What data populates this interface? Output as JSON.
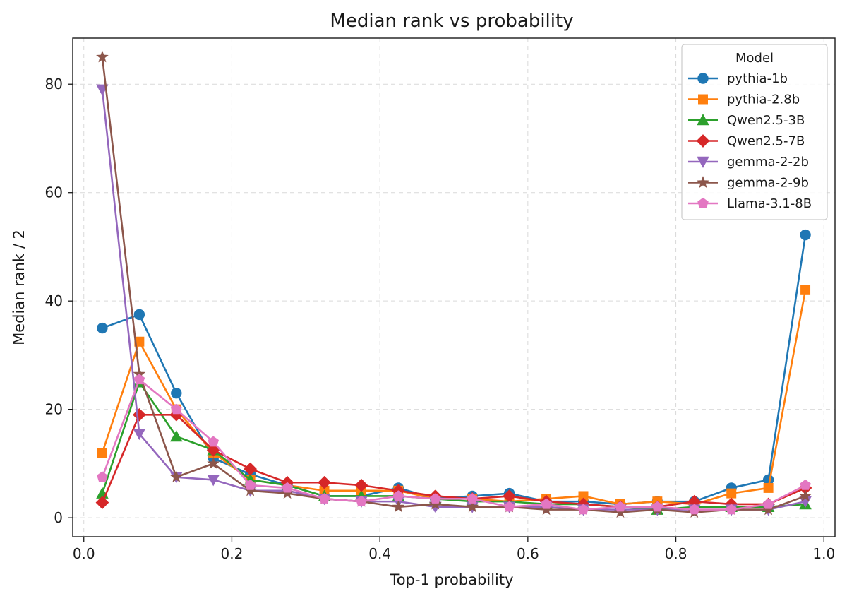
{
  "chart_data": {
    "type": "line",
    "title": "Median rank vs probability",
    "xlabel": "Top-1 probability",
    "ylabel": "Median rank / 2",
    "xlim": [
      -0.015,
      1.015
    ],
    "ylim": [
      -3.5,
      88.5
    ],
    "xticks": [
      0.0,
      0.2,
      0.4,
      0.6,
      0.8,
      1.0
    ],
    "xtick_labels": [
      "0.0",
      "0.2",
      "0.4",
      "0.6",
      "0.8",
      "1.0"
    ],
    "yticks": [
      0,
      20,
      40,
      60,
      80
    ],
    "ytick_labels": [
      "0",
      "20",
      "40",
      "60",
      "80"
    ],
    "grid": true,
    "legend": {
      "title": "Model",
      "placement": "top-right"
    },
    "x": [
      0.025,
      0.075,
      0.125,
      0.175,
      0.225,
      0.275,
      0.325,
      0.375,
      0.425,
      0.475,
      0.525,
      0.575,
      0.625,
      0.675,
      0.725,
      0.775,
      0.825,
      0.875,
      0.925,
      0.975
    ],
    "series": [
      {
        "name": "pythia-1b",
        "color": "#1f77b4",
        "marker": "circle",
        "values": [
          35,
          37.5,
          23,
          11,
          8,
          6,
          4,
          4,
          5.5,
          3.5,
          4,
          4.5,
          3,
          3,
          2.5,
          3,
          3,
          5.5,
          7,
          52.2
        ]
      },
      {
        "name": "pythia-2.8b",
        "color": "#ff7f0e",
        "marker": "square",
        "values": [
          12,
          32.5,
          20,
          12,
          7,
          6,
          5,
          5,
          5,
          3.5,
          3.5,
          3,
          3.5,
          4,
          2.5,
          3,
          2.5,
          4.5,
          5.5,
          42
        ]
      },
      {
        "name": "Qwen2.5-3B",
        "color": "#2ca02c",
        "marker": "triangle-up",
        "values": [
          4.5,
          25,
          15,
          12.5,
          7,
          6,
          4,
          4,
          4,
          3.5,
          3,
          3,
          2.5,
          2.5,
          2,
          1.5,
          2,
          2,
          2,
          2.5
        ]
      },
      {
        "name": "Qwen2.5-7B",
        "color": "#d62728",
        "marker": "diamond",
        "values": [
          2.8,
          19,
          19,
          12.5,
          9,
          6.5,
          6.5,
          6,
          5,
          4,
          3.5,
          4,
          3,
          2.5,
          2,
          2,
          3,
          2.5,
          2.5,
          5.5
        ]
      },
      {
        "name": "gemma-2-2b",
        "color": "#9467bd",
        "marker": "triangle-down",
        "values": [
          79,
          15.5,
          7.5,
          7,
          5,
          5,
          3.5,
          3,
          3,
          2,
          2,
          2,
          2,
          1.5,
          1.5,
          1.5,
          1.5,
          1.5,
          1.5,
          3
        ]
      },
      {
        "name": "gemma-2-9b",
        "color": "#8c564b",
        "marker": "star",
        "values": [
          85,
          26.5,
          7.5,
          10,
          5,
          4.5,
          3.5,
          3,
          2,
          2.5,
          2,
          2,
          1.5,
          1.5,
          1,
          1.5,
          1,
          1.5,
          1.5,
          4
        ]
      },
      {
        "name": "Llama-3.1-8B",
        "color": "#e377c2",
        "marker": "pentagon",
        "values": [
          7.5,
          25.5,
          20,
          14,
          6,
          5.5,
          3.5,
          3,
          4,
          3.5,
          3.5,
          2,
          2.5,
          1.5,
          2,
          2,
          1.5,
          1.5,
          2.5,
          6
        ]
      }
    ]
  }
}
